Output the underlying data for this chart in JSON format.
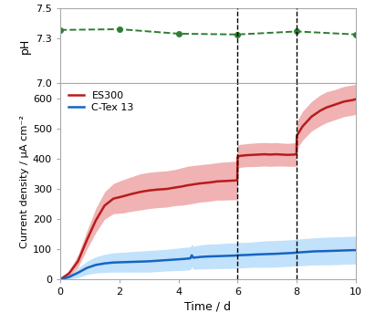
{
  "ph_x": [
    0,
    2,
    4,
    6,
    8,
    10
  ],
  "ph_y": [
    7.355,
    7.36,
    7.33,
    7.325,
    7.345,
    7.325
  ],
  "ph_ylim": [
    7.0,
    7.5
  ],
  "ph_yticks": [
    7.0,
    7.3,
    7.5
  ],
  "ph_color": "#2e7d32",
  "ph_ylabel": "pH",
  "time_dashed": [
    6,
    8
  ],
  "es300_x": [
    0,
    0.3,
    0.6,
    0.9,
    1.2,
    1.5,
    1.8,
    2.1,
    2.4,
    2.7,
    3.0,
    3.3,
    3.6,
    3.9,
    4.1,
    4.3,
    4.5,
    4.7,
    4.9,
    5.1,
    5.3,
    5.5,
    5.7,
    5.9,
    5.99,
    6.0,
    6.01,
    6.1,
    6.3,
    6.5,
    6.7,
    6.9,
    7.1,
    7.3,
    7.5,
    7.7,
    7.9,
    7.99,
    8.0,
    8.01,
    8.2,
    8.5,
    8.8,
    9.0,
    9.3,
    9.6,
    9.9,
    10.0
  ],
  "es300_y": [
    0,
    20,
    60,
    130,
    195,
    245,
    268,
    275,
    283,
    290,
    295,
    298,
    300,
    305,
    308,
    312,
    315,
    318,
    320,
    322,
    325,
    326,
    327,
    328,
    329,
    402,
    408,
    410,
    412,
    413,
    414,
    415,
    414,
    415,
    414,
    413,
    414,
    415,
    470,
    478,
    508,
    540,
    560,
    570,
    580,
    590,
    595,
    598
  ],
  "es300_upper": [
    0,
    30,
    80,
    160,
    235,
    290,
    318,
    330,
    340,
    350,
    355,
    358,
    360,
    365,
    370,
    375,
    378,
    380,
    382,
    384,
    387,
    389,
    390,
    392,
    394,
    440,
    446,
    448,
    450,
    452,
    453,
    454,
    453,
    454,
    452,
    451,
    453,
    454,
    510,
    525,
    558,
    590,
    612,
    622,
    630,
    640,
    645,
    648
  ],
  "es300_lower": [
    0,
    10,
    40,
    100,
    155,
    200,
    218,
    220,
    226,
    230,
    235,
    238,
    240,
    245,
    246,
    249,
    252,
    256,
    258,
    260,
    263,
    263,
    264,
    264,
    264,
    360,
    370,
    372,
    374,
    374,
    375,
    376,
    375,
    376,
    376,
    375,
    375,
    376,
    430,
    435,
    462,
    492,
    510,
    520,
    530,
    540,
    545,
    548
  ],
  "es300_color": "#b71c1c",
  "es300_fill_color": "#e57373",
  "es300_label": "ES300",
  "ctex_x": [
    0,
    0.3,
    0.6,
    0.9,
    1.2,
    1.5,
    1.8,
    2.1,
    2.4,
    2.7,
    3.0,
    3.3,
    3.6,
    3.9,
    4.2,
    4.4,
    4.45,
    4.5,
    4.6,
    4.7,
    4.8,
    5.0,
    5.3,
    5.6,
    5.9,
    6.0,
    6.3,
    6.5,
    6.7,
    7.0,
    7.3,
    7.5,
    7.7,
    7.9,
    8.0,
    8.3,
    8.6,
    9.0,
    9.3,
    9.6,
    9.9,
    10.0
  ],
  "ctex_y": [
    0,
    8,
    22,
    38,
    48,
    53,
    56,
    57,
    58,
    59,
    60,
    62,
    64,
    66,
    68,
    70,
    80,
    72,
    73,
    74,
    75,
    76,
    77,
    78,
    79,
    80,
    81,
    82,
    83,
    84,
    85,
    86,
    87,
    88,
    89,
    91,
    93,
    94,
    95,
    96,
    97,
    97
  ],
  "ctex_upper": [
    0,
    15,
    38,
    60,
    75,
    83,
    88,
    90,
    92,
    94,
    96,
    98,
    100,
    103,
    106,
    108,
    118,
    110,
    112,
    113,
    115,
    117,
    118,
    120,
    121,
    122,
    123,
    124,
    126,
    128,
    129,
    130,
    131,
    132,
    133,
    136,
    138,
    140,
    141,
    142,
    143,
    143
  ],
  "ctex_lower": [
    0,
    1,
    6,
    16,
    21,
    23,
    24,
    24,
    24,
    24,
    24,
    26,
    28,
    29,
    30,
    32,
    42,
    34,
    34,
    35,
    35,
    35,
    36,
    36,
    37,
    38,
    39,
    40,
    40,
    40,
    41,
    42,
    43,
    44,
    45,
    46,
    48,
    48,
    49,
    50,
    51,
    51
  ],
  "ctex_color": "#1565c0",
  "ctex_fill_color": "#90caf9",
  "ctex_label": "C-Tex 13",
  "current_ylim": [
    0,
    650
  ],
  "current_yticks": [
    0,
    100,
    200,
    300,
    400,
    500,
    600
  ],
  "current_ylabel": "Current density / μA cm⁻²",
  "xlabel": "Time / d",
  "xlim": [
    0,
    10
  ],
  "xticks": [
    0,
    2,
    4,
    6,
    8,
    10
  ],
  "spine_color": "#aaaaaa",
  "background_color": "#ffffff"
}
